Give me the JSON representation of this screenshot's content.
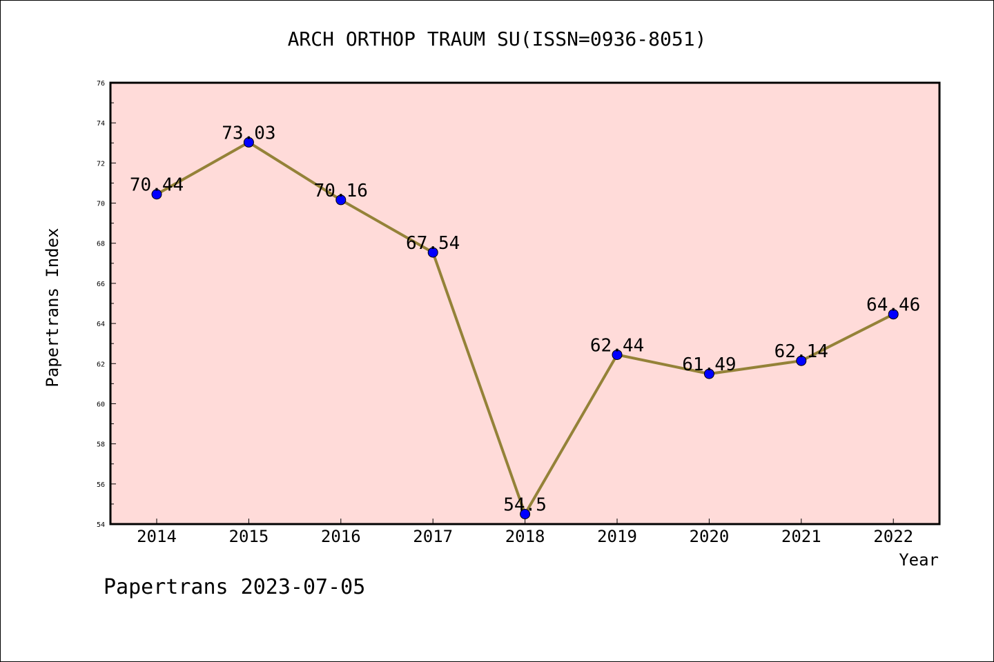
{
  "chart_data": {
    "type": "line",
    "title": "ARCH ORTHOP TRAUM SU(ISSN=0936-8051)",
    "xlabel": "Year",
    "ylabel": "Papertrans Index",
    "x": [
      "2014",
      "2015",
      "2016",
      "2017",
      "2018",
      "2019",
      "2020",
      "2021",
      "2022"
    ],
    "series": [
      {
        "values": [
          70.44,
          73.03,
          70.16,
          67.54,
          54.5,
          62.44,
          61.49,
          62.14,
          64.46
        ]
      }
    ],
    "data_labels": [
      "70.44",
      "73.03",
      "70.16",
      "67.54",
      "54.5",
      "62.44",
      "61.49",
      "62.14",
      "64.46"
    ],
    "ylim": [
      54,
      76
    ],
    "y_ticks": [
      54,
      56,
      58,
      60,
      62,
      64,
      66,
      68,
      70,
      72,
      74,
      76
    ],
    "grid": false,
    "colors": {
      "plot_background": "#ffdbd9",
      "line": "#948238",
      "marker": "#0000ff"
    }
  },
  "footer": "Papertrans 2023-07-05"
}
